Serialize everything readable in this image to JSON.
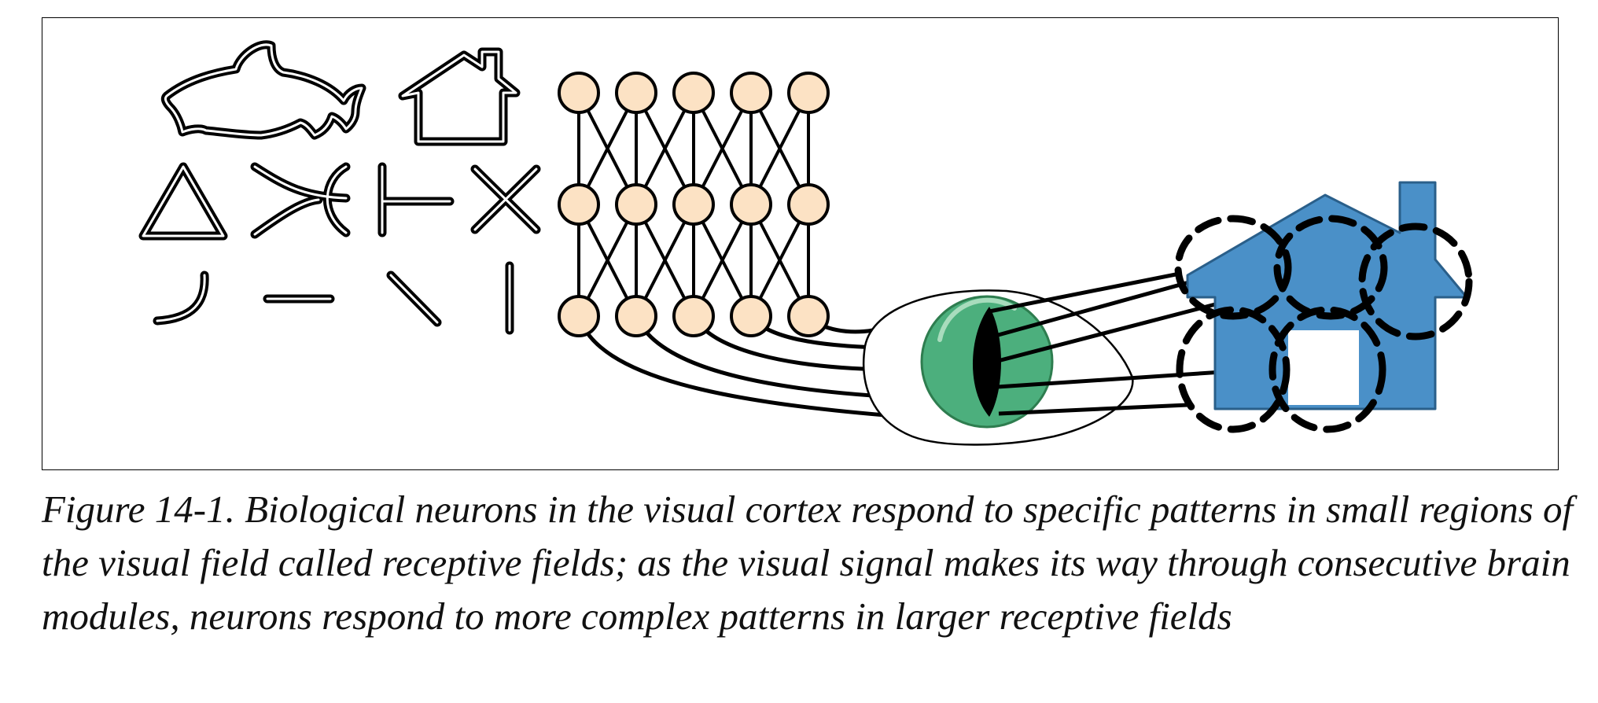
{
  "figure": {
    "caption": "Figure 14-1. Biological neurons in the visual cortex respond to specific patterns in small regions of the visual field called receptive fields; as the visual signal makes its way through consecutive brain modules, neurons respond to more complex patterns in larger receptive fields"
  },
  "colors": {
    "neuron_fill": "#fce2c4",
    "eye_iris": "#4caf7d",
    "house_fill": "#4a90c8",
    "stroke": "#000000"
  },
  "icons": {
    "row1": [
      "shark-icon",
      "house-outline-icon"
    ],
    "row2": [
      "triangle-icon",
      "arcs-icon",
      "t-junction-icon",
      "cross-icon"
    ],
    "row3": [
      "curve-icon",
      "horizontal-line-icon",
      "diagonal-line-icon",
      "vertical-line-icon"
    ]
  },
  "network": {
    "rows": 3,
    "cols": 5
  }
}
